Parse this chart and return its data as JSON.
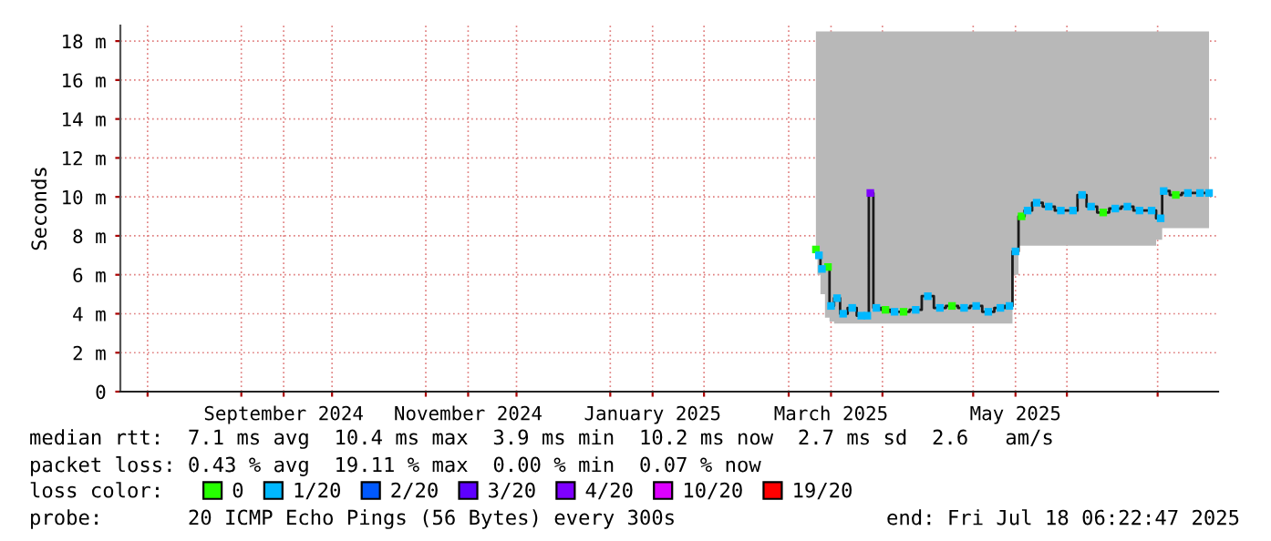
{
  "chart_data": {
    "type": "line",
    "ylabel": "Seconds",
    "x": [
      "2025-03-10",
      "2025-03-11",
      "2025-03-12",
      "2025-03-14",
      "2025-03-15",
      "2025-03-17",
      "2025-03-19",
      "2025-03-22",
      "2025-03-25",
      "2025-03-27",
      "2025-03-28",
      "2025-03-30",
      "2025-04-02",
      "2025-04-05",
      "2025-04-08",
      "2025-04-12",
      "2025-04-16",
      "2025-04-20",
      "2025-04-24",
      "2025-04-28",
      "2025-05-02",
      "2025-05-06",
      "2025-05-10",
      "2025-05-13",
      "2025-05-15",
      "2025-05-17",
      "2025-05-19",
      "2025-05-22",
      "2025-05-26",
      "2025-05-30",
      "2025-06-03",
      "2025-06-06",
      "2025-06-09",
      "2025-06-13",
      "2025-06-17",
      "2025-06-21",
      "2025-06-25",
      "2025-06-29",
      "2025-07-02",
      "2025-07-03",
      "2025-07-07",
      "2025-07-11",
      "2025-07-15",
      "2025-07-18"
    ],
    "series": [
      {
        "color": "#1a1a1a",
        "values": [
          7.3,
          7.0,
          6.3,
          6.4,
          4.4,
          4.8,
          4.0,
          4.3,
          3.9,
          3.9,
          10.2,
          4.3,
          4.2,
          4.1,
          4.1,
          4.2,
          4.9,
          4.3,
          4.4,
          4.3,
          4.4,
          4.1,
          4.3,
          4.4,
          7.2,
          9.0,
          9.3,
          9.7,
          9.5,
          9.3,
          9.3,
          10.1,
          9.5,
          9.2,
          9.4,
          9.5,
          9.3,
          9.3,
          8.9,
          10.3,
          10.1,
          10.2,
          10.2,
          10.2
        ],
        "lower": [
          6.8,
          6.0,
          5.0,
          3.8,
          3.6,
          3.5,
          3.5,
          3.5,
          3.5,
          3.5,
          3.5,
          3.5,
          3.5,
          3.5,
          3.5,
          3.5,
          3.5,
          3.5,
          3.5,
          3.5,
          3.5,
          3.5,
          3.5,
          3.5,
          6.0,
          7.5,
          7.5,
          7.5,
          7.5,
          7.5,
          7.5,
          7.5,
          7.5,
          7.5,
          7.5,
          7.5,
          7.5,
          7.5,
          7.8,
          8.4,
          8.4,
          8.4,
          8.4,
          8.4
        ],
        "upper": [
          18.5,
          18.5,
          18.5,
          18.5,
          18.5,
          18.5,
          18.5,
          18.5,
          18.5,
          18.5,
          18.5,
          18.5,
          18.5,
          18.5,
          18.5,
          18.5,
          18.5,
          18.5,
          18.5,
          18.5,
          18.5,
          18.5,
          18.5,
          18.5,
          18.5,
          18.5,
          18.5,
          18.5,
          18.5,
          18.5,
          18.5,
          18.5,
          18.5,
          18.5,
          18.5,
          18.5,
          18.5,
          18.5,
          18.5,
          18.5,
          18.5,
          18.5,
          18.5,
          18.5
        ]
      },
      {
        "type": "scatter",
        "name": "0",
        "color": "#26ff00",
        "marker": "square",
        "x": [
          "2025-03-10",
          "2025-03-14",
          "2025-04-02",
          "2025-04-08",
          "2025-04-24",
          "2025-05-17",
          "2025-06-13",
          "2025-07-07"
        ],
        "values": [
          7.3,
          6.4,
          4.2,
          4.1,
          4.4,
          9.0,
          9.2,
          10.1
        ]
      },
      {
        "type": "scatter",
        "name": "1/20",
        "color": "#00b8ff",
        "marker": "square",
        "x": [
          "2025-03-11",
          "2025-03-12",
          "2025-03-15",
          "2025-03-17",
          "2025-03-19",
          "2025-03-22",
          "2025-03-25",
          "2025-03-27",
          "2025-03-30",
          "2025-04-05",
          "2025-04-12",
          "2025-04-16",
          "2025-04-20",
          "2025-04-28",
          "2025-05-02",
          "2025-05-06",
          "2025-05-10",
          "2025-05-13",
          "2025-05-15",
          "2025-05-19",
          "2025-05-22",
          "2025-05-26",
          "2025-05-30",
          "2025-06-03",
          "2025-06-06",
          "2025-06-09",
          "2025-06-17",
          "2025-06-21",
          "2025-06-25",
          "2025-06-29",
          "2025-07-02",
          "2025-07-03",
          "2025-07-11",
          "2025-07-15",
          "2025-07-18"
        ],
        "values": [
          7.0,
          6.3,
          4.4,
          4.8,
          4.0,
          4.3,
          3.9,
          3.9,
          4.3,
          4.1,
          4.2,
          4.9,
          4.3,
          4.3,
          4.4,
          4.1,
          4.3,
          4.4,
          7.2,
          9.3,
          9.7,
          9.5,
          9.3,
          9.3,
          10.1,
          9.5,
          9.4,
          9.5,
          9.3,
          9.3,
          8.9,
          10.3,
          10.2,
          10.2,
          10.2
        ]
      },
      {
        "type": "scatter",
        "name": "2/20",
        "color": "#0059ff",
        "marker": "square",
        "values": [
          null,
          null,
          null,
          null,
          null,
          null,
          null,
          null,
          null,
          null,
          null,
          null,
          null,
          null,
          null,
          null,
          null,
          null,
          null,
          null,
          null,
          null,
          null,
          null,
          null,
          null,
          null,
          null,
          null,
          null,
          null,
          null,
          null,
          null,
          null,
          null,
          null,
          null,
          null,
          null,
          null,
          null,
          null,
          null
        ]
      },
      {
        "type": "scatter",
        "name": "3/20",
        "color": "#5e00ff",
        "marker": "square",
        "values": [
          null,
          null,
          null,
          null,
          null,
          null,
          null,
          null,
          null,
          null,
          null,
          null,
          null,
          null,
          null,
          null,
          null,
          null,
          null,
          null,
          null,
          null,
          null,
          null,
          null,
          null,
          null,
          null,
          null,
          null,
          null,
          null,
          null,
          null,
          null,
          null,
          null,
          null,
          null,
          null,
          null,
          null,
          null,
          null
        ]
      },
      {
        "type": "scatter",
        "name": "4/20",
        "color": "#7e00ff",
        "marker": "square",
        "x": [
          "2025-03-28"
        ],
        "values": [
          10.2
        ]
      },
      {
        "type": "scatter",
        "name": "10/20",
        "color": "#dd00ff",
        "marker": "square",
        "values": [
          null,
          null,
          null,
          null,
          null,
          null,
          null,
          null,
          null,
          null,
          null,
          null,
          null,
          null,
          null,
          null,
          null,
          null,
          null,
          null,
          null,
          null,
          null,
          null,
          null,
          null,
          null,
          null,
          null,
          null,
          null,
          null,
          null,
          null,
          null,
          null,
          null,
          null,
          null,
          null,
          null,
          null,
          null,
          null
        ]
      },
      {
        "type": "scatter",
        "name": "19/20",
        "color": "#ff0000",
        "marker": "square",
        "values": [
          null,
          null,
          null,
          null,
          null,
          null,
          null,
          null,
          null,
          null,
          null,
          null,
          null,
          null,
          null,
          null,
          null,
          null,
          null,
          null,
          null,
          null,
          null,
          null,
          null,
          null,
          null,
          null,
          null,
          null,
          null,
          null,
          null,
          null,
          null,
          null,
          null,
          null,
          null,
          null,
          null,
          null,
          null,
          null
        ]
      }
    ],
    "xlim": [
      "2024-07-23",
      "2025-07-21"
    ],
    "xticks": [
      {
        "value": "2024-08-01",
        "label": null
      },
      {
        "value": "2024-09-01",
        "label": null
      },
      {
        "value": "2024-09-15",
        "label": "September 2024"
      },
      {
        "value": "2024-10-01",
        "label": null
      },
      {
        "value": "2024-11-01",
        "label": null
      },
      {
        "value": "2024-11-15",
        "label": "November 2024"
      },
      {
        "value": "2024-12-01",
        "label": null
      },
      {
        "value": "2025-01-01",
        "label": null
      },
      {
        "value": "2025-01-15",
        "label": "January 2025"
      },
      {
        "value": "2025-02-01",
        "label": null
      },
      {
        "value": "2025-03-01",
        "label": null
      },
      {
        "value": "2025-03-15",
        "label": "March 2025"
      },
      {
        "value": "2025-04-01",
        "label": null
      },
      {
        "value": "2025-05-01",
        "label": null
      },
      {
        "value": "2025-05-15",
        "label": "May 2025"
      },
      {
        "value": "2025-06-01",
        "label": null
      },
      {
        "value": "2025-07-01",
        "label": null
      }
    ],
    "ylim": [
      0,
      18.8
    ],
    "yticks": [
      0,
      {
        "value": 2,
        "label": "2 m"
      },
      {
        "value": 4,
        "label": "4 m"
      },
      {
        "value": 6,
        "label": "6 m"
      },
      {
        "value": 8,
        "label": "8 m"
      },
      {
        "value": 10,
        "label": "10 m"
      },
      {
        "value": 12,
        "label": "12 m"
      },
      {
        "value": 14,
        "label": "14 m"
      },
      {
        "value": 16,
        "label": "16 m"
      },
      {
        "value": 18,
        "label": "18 m"
      }
    ],
    "grid": true,
    "legend": "bottom",
    "legend_title": "loss color:",
    "marker": "none",
    "annotations": [
      "median rtt:  7.1 ms avg  10.4 ms max  3.9 ms min  10.2 ms now  2.7 ms sd  2.6   am/s",
      "packet loss: 0.43 % avg  19.11 % max  0.00 % min  0.07 % now",
      "probe:       20 ICMP Echo Pings (56 Bytes) every 300s",
      "end: Fri Jul 18 06:22:47 2025"
    ]
  }
}
